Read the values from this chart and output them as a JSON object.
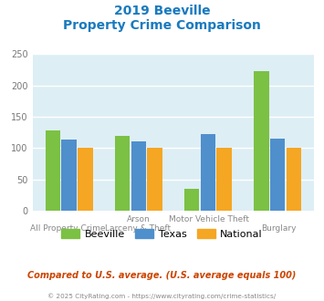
{
  "title_line1": "2019 Beeville",
  "title_line2": "Property Crime Comparison",
  "title_color": "#1a7abf",
  "cat_labels_top": [
    "",
    "Arson",
    "Motor Vehicle Theft",
    ""
  ],
  "cat_labels_bot": [
    "All Property Crime",
    "Larceny & Theft",
    "",
    "Burglary"
  ],
  "beeville": [
    128,
    120,
    35,
    223
  ],
  "texas": [
    113,
    111,
    122,
    115
  ],
  "national": [
    100,
    100,
    100,
    100
  ],
  "beeville_color": "#7bc143",
  "texas_color": "#4f8fcc",
  "national_color": "#f5a623",
  "ylim": [
    0,
    250
  ],
  "yticks": [
    0,
    50,
    100,
    150,
    200,
    250
  ],
  "plot_bg_color": "#ddeef5",
  "grid_color": "#ffffff",
  "footer_note": "Compared to U.S. average. (U.S. average equals 100)",
  "footer_note_color": "#cc4400",
  "copyright_text": "© 2025 CityRating.com - https://www.cityrating.com/crime-statistics/",
  "copyright_color": "#888888",
  "legend_labels": [
    "Beeville",
    "Texas",
    "National"
  ]
}
